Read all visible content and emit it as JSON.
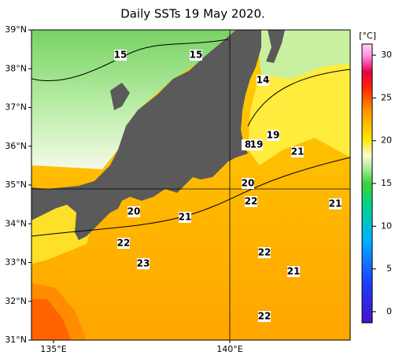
{
  "title": "Daily SSTs 19 May 2020.",
  "lat_labels": [
    "39°N",
    "38°N",
    "37°N",
    "36°N",
    "35°N",
    "34°N",
    "33°N",
    "32°N",
    "31°N"
  ],
  "lon_labels": [
    "135°E",
    "140°E"
  ],
  "colorbar": {
    "unit": "[°C]",
    "ticks": [
      0,
      5,
      10,
      15,
      20,
      25,
      30
    ],
    "lim": [
      -1.3,
      31.3
    ]
  },
  "contour_labels": [
    15,
    15,
    14,
    19,
    8,
    19,
    21,
    20,
    22,
    21,
    20,
    21,
    22,
    23,
    22,
    21,
    22
  ]
}
